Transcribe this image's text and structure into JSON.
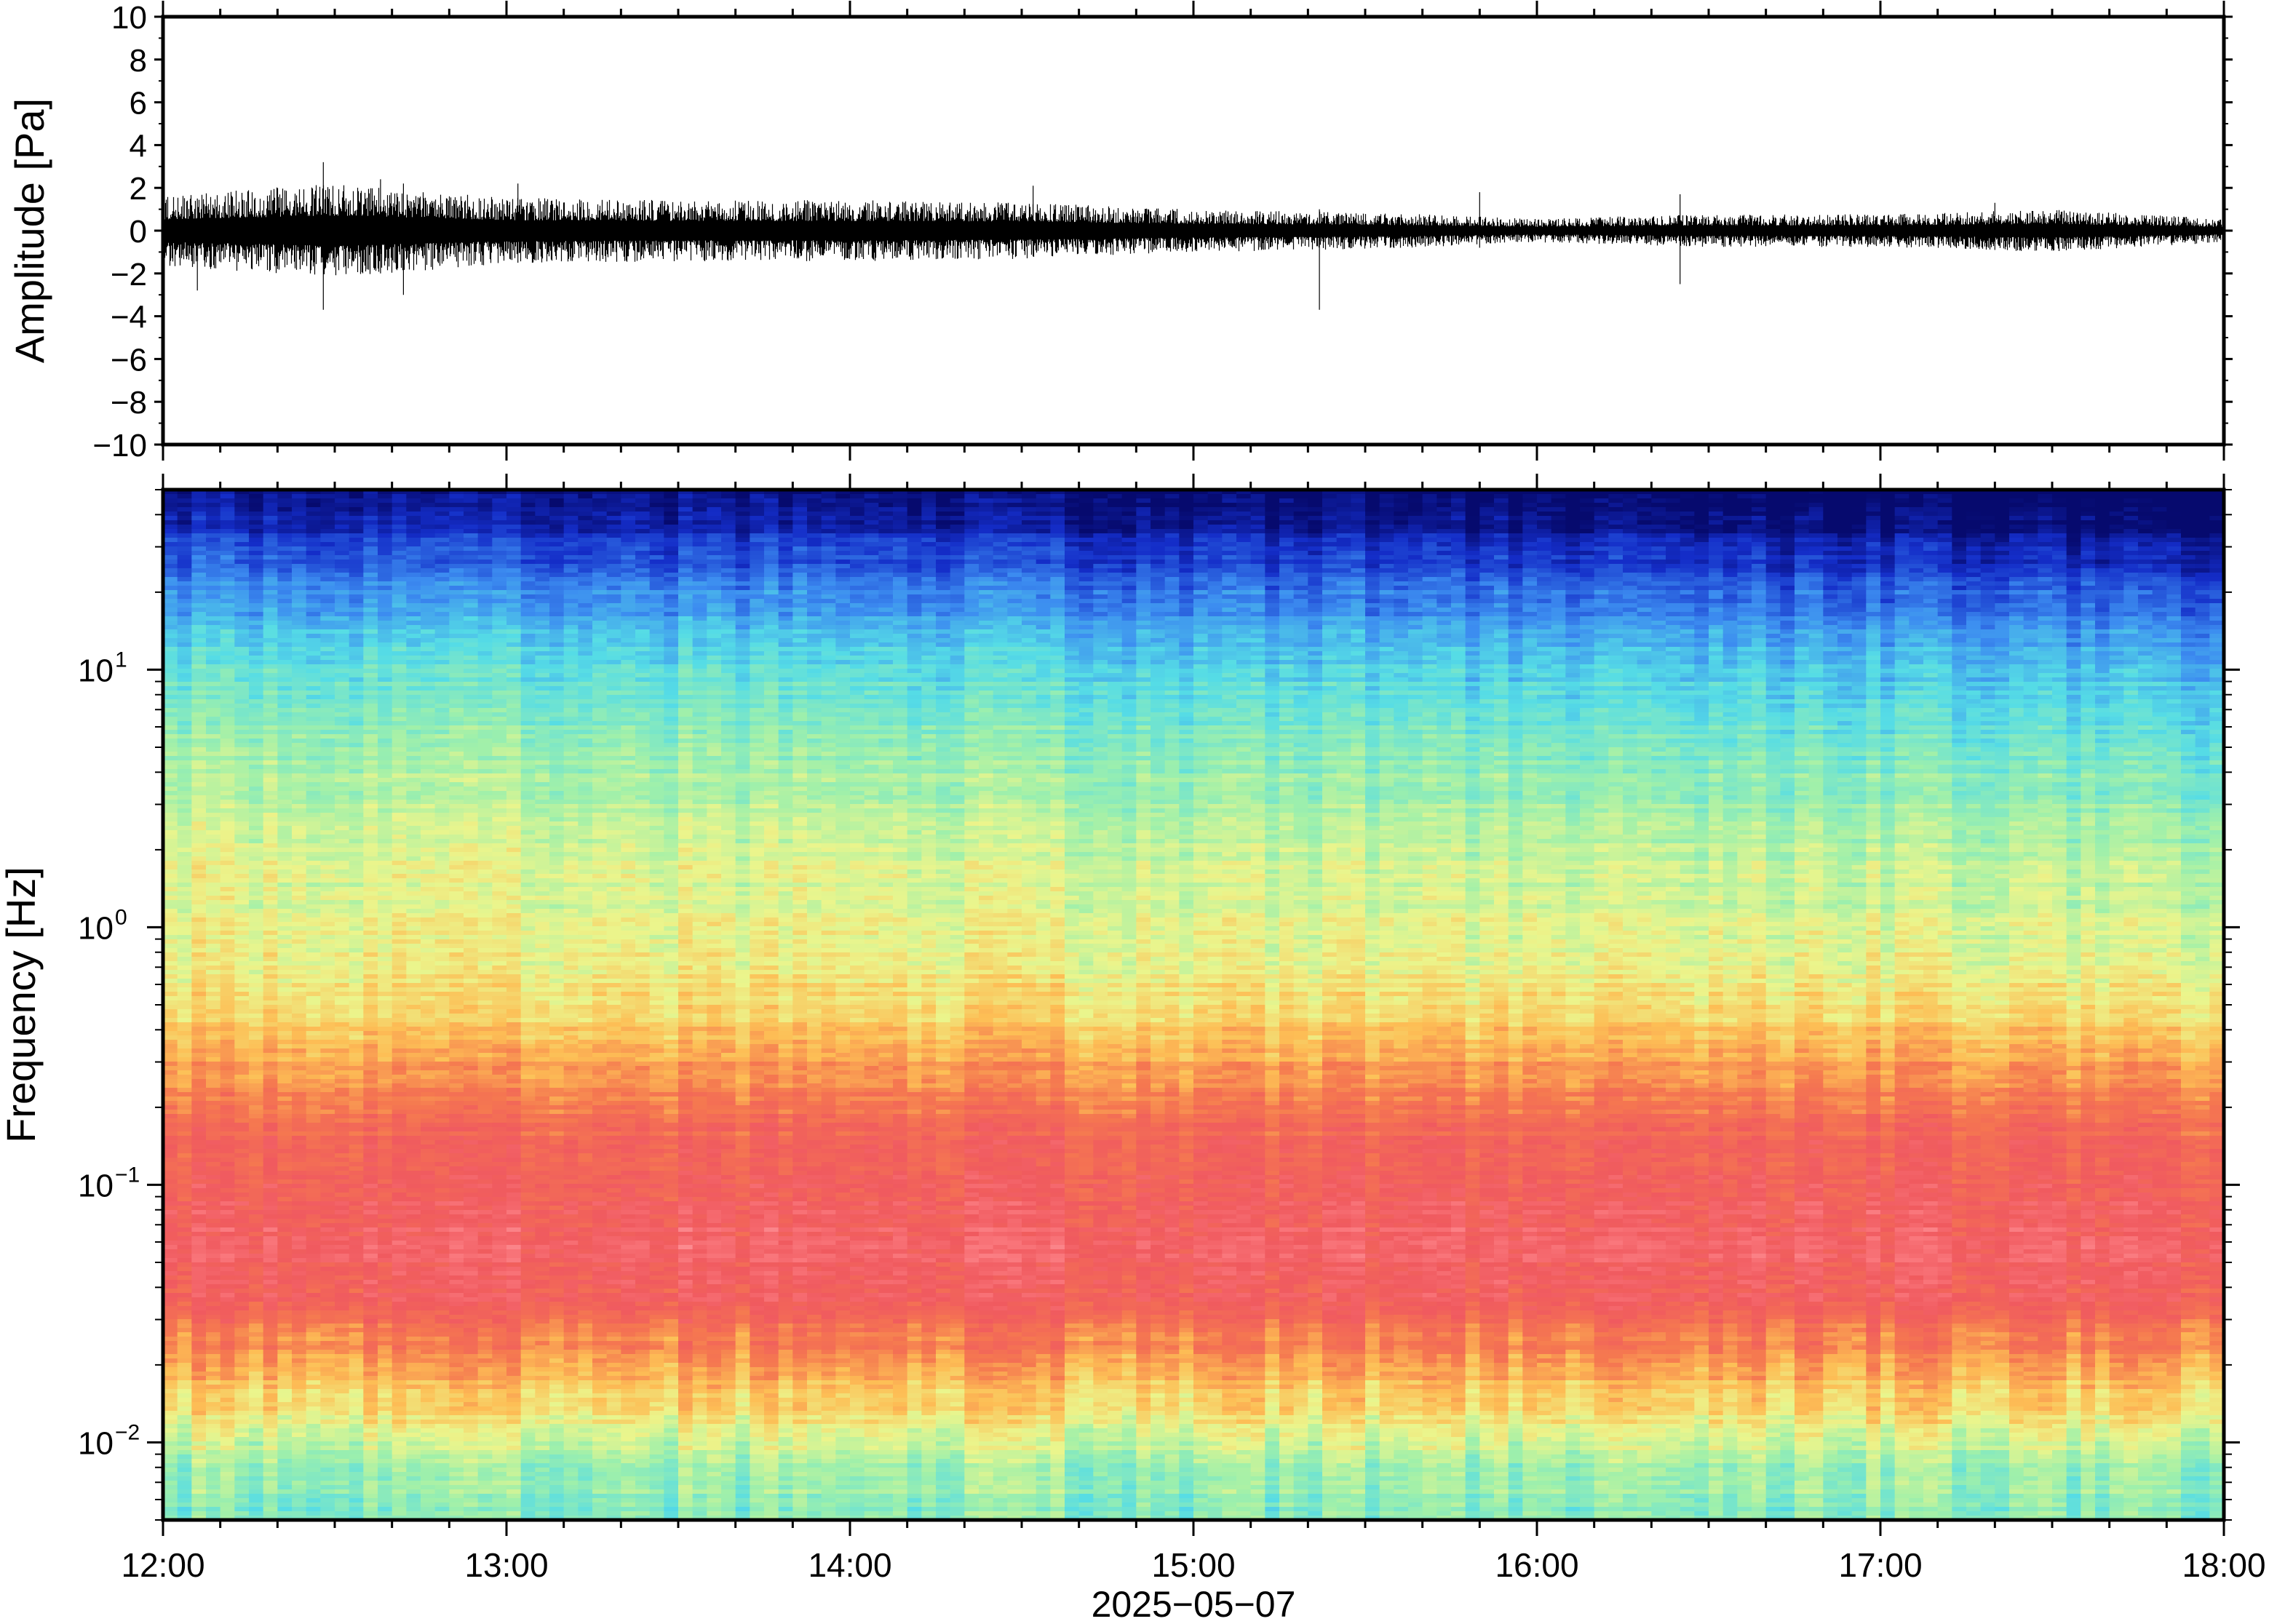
{
  "chart_data": [
    {
      "type": "line",
      "panel": "waveform",
      "ylabel": "Amplitude [Pa]",
      "ylim": [
        -10,
        10
      ],
      "yticks": [
        "10",
        "8",
        "6",
        "4",
        "2",
        "0",
        "−2",
        "−4",
        "−6",
        "−8",
        "−10"
      ],
      "ytick_values": [
        10,
        8,
        6,
        4,
        2,
        0,
        -2,
        -4,
        -6,
        -8,
        -10
      ],
      "xlim": [
        "12:00",
        "18:00"
      ],
      "series": [
        {
          "values_desc": "dense noise trace",
          "envelope": [
            {
              "t": "12:00",
              "amp": 1.5
            },
            {
              "t": "12:30",
              "amp": 2.0
            },
            {
              "t": "13:00",
              "amp": 1.4
            },
            {
              "t": "13:30",
              "amp": 1.3
            },
            {
              "t": "14:00",
              "amp": 1.3
            },
            {
              "t": "14:30",
              "amp": 1.2
            },
            {
              "t": "15:00",
              "amp": 0.9
            },
            {
              "t": "15:30",
              "amp": 0.8
            },
            {
              "t": "16:00",
              "amp": 0.5
            },
            {
              "t": "16:30",
              "amp": 0.7
            },
            {
              "t": "17:00",
              "amp": 0.7
            },
            {
              "t": "17:30",
              "amp": 0.9
            },
            {
              "t": "18:00",
              "amp": 0.5
            }
          ],
          "spikes": [
            {
              "t": "12:28",
              "max": 3.2,
              "min": -3.7
            },
            {
              "t": "12:38",
              "max": 2.4,
              "min": -2.0
            },
            {
              "t": "12:42",
              "max": 2.2,
              "min": -3.0
            },
            {
              "t": "12:06",
              "max": 1.5,
              "min": -2.8
            },
            {
              "t": "13:02",
              "max": 2.2,
              "min": -1.5
            },
            {
              "t": "14:32",
              "max": 2.1,
              "min": -1.2
            },
            {
              "t": "15:22",
              "max": 1.0,
              "min": -3.7
            },
            {
              "t": "15:50",
              "max": 1.8,
              "min": -0.8
            },
            {
              "t": "16:25",
              "max": 1.7,
              "min": -2.5
            },
            {
              "t": "17:20",
              "max": 1.3,
              "min": -0.9
            }
          ]
        }
      ],
      "color": "#000000"
    },
    {
      "type": "heatmap",
      "panel": "spectrogram",
      "ylabel": "Frequency [Hz]",
      "yscale": "log",
      "ylim": [
        0.005,
        50
      ],
      "yticks": [
        {
          "value": 10,
          "base": "10",
          "exp": "1"
        },
        {
          "value": 1,
          "base": "10",
          "exp": "0"
        },
        {
          "value": 0.1,
          "base": "10",
          "exp": "−1"
        },
        {
          "value": 0.01,
          "base": "10",
          "exp": "−2"
        }
      ],
      "xlabel": "2025−05−07",
      "xticks": [
        "12:00",
        "13:00",
        "14:00",
        "15:00",
        "16:00",
        "17:00",
        "18:00"
      ],
      "xlim": [
        "12:00",
        "18:00"
      ],
      "colormap": "rainbow",
      "colors": [
        "#6ee8e0",
        "#a6efa0",
        "#f0f58c",
        "#fdb152",
        "#f46a5a",
        "#ff9ea4",
        "#4bc8ef",
        "#1f55d9",
        "#061675"
      ],
      "description_levels": {
        "above_20Hz": "dark blue",
        "5_to_20Hz": "blue to cyan",
        "0.5_to_5Hz": "light green / yellow",
        "0.03_to_0.3Hz": "red / pink",
        "0.01_to_0.03Hz": "orange / yellow",
        "below_0.01Hz": "green / cyan"
      }
    }
  ]
}
